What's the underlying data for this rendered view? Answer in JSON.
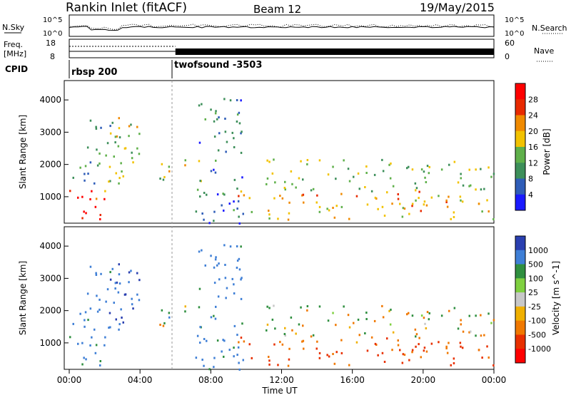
{
  "header": {
    "station": "Rankin Inlet (fitACF)",
    "beam": "Beam 12",
    "date": "19/May/2015"
  },
  "top_panel": {
    "left_label": "N.Sky",
    "right_label": "N.Search",
    "tick_top": "10^5",
    "tick_bottom": "10^0",
    "right_tick_top": "10^5",
    "right_tick_bottom": "10^0"
  },
  "freq_panel": {
    "left_label_line1": "Freq.",
    "left_label_line2": "[MHz]",
    "tick_top": "18",
    "tick_bottom": "8",
    "right_label": "Nave",
    "right_tick_top": "60",
    "right_tick_bottom": "0"
  },
  "cpid_panel": {
    "label": "CPID",
    "modes": [
      "rbsp 200",
      "twofsound -3503"
    ]
  },
  "x_axis": {
    "ticks": [
      "00:00",
      "04:00",
      "08:00",
      "12:00",
      "16:00",
      "20:00",
      "00:00"
    ],
    "label": "Time UT"
  },
  "power_panel": {
    "ylabel": "Slant Range [km]",
    "yticks": [
      "1000",
      "2000",
      "3000",
      "4000"
    ],
    "colorbar_label": "Power [dB]",
    "colorbar_ticks": [
      "4",
      "8",
      "12",
      "16",
      "20",
      "24",
      "28"
    ],
    "colors": [
      "#1a1aff",
      "#2f5db8",
      "#3d8f5a",
      "#5fb04a",
      "#f2c200",
      "#f08a00",
      "#e82a00",
      "#ff0000"
    ]
  },
  "velocity_panel": {
    "ylabel": "Slant Range [km]",
    "yticks": [
      "1000",
      "2000",
      "3000",
      "4000"
    ],
    "colorbar_label": "Velocity [m s^-1]",
    "colorbar_ticks": [
      "1000",
      "500",
      "100",
      "25",
      "-25",
      "-100",
      "-500",
      "-1000"
    ],
    "colors": [
      "#2a3fb0",
      "#3f7fd6",
      "#2f8f3f",
      "#7fd040",
      "#c8c8c8",
      "#f0b000",
      "#f07800",
      "#e83000",
      "#ff0000"
    ]
  },
  "chart_data": {
    "type": "heatmap",
    "title": "Rankin Inlet (fitACF) Beam 12 19/May/2015",
    "xlabel": "Time UT",
    "ylabel": "Slant Range [km]",
    "xlim_hours": [
      0,
      24
    ],
    "ylim_km": [
      180,
      4600
    ],
    "cpid_segments": [
      {
        "name": "rbsp 200",
        "start_h": 0,
        "end_h": 6.0
      },
      {
        "name": "twofsound -3503",
        "start_h": 6.0,
        "end_h": 24
      }
    ],
    "scatter_regions": [
      {
        "t0": 0.0,
        "t1": 2.1,
        "r0": 200,
        "r1": 1300,
        "power": 28,
        "velocity": 300
      },
      {
        "t0": 0.1,
        "t1": 1.5,
        "r0": 1400,
        "r1": 2200,
        "power": 8,
        "velocity": 500
      },
      {
        "t0": 1.0,
        "t1": 3.0,
        "r0": 1200,
        "r1": 3400,
        "power": 12,
        "velocity": 500
      },
      {
        "t0": 2.2,
        "t1": 4.0,
        "r0": 1300,
        "r1": 3500,
        "power": 16,
        "velocity": 800
      },
      {
        "t0": 5.0,
        "t1": 7.5,
        "r0": 1500,
        "r1": 2200,
        "power": 16,
        "velocity": 100
      },
      {
        "t0": 7.0,
        "t1": 9.8,
        "r0": 200,
        "r1": 4200,
        "power": 8,
        "velocity": 500
      },
      {
        "t0": 9.5,
        "t1": 24.0,
        "r0": 300,
        "r1": 1200,
        "power": 20,
        "velocity": -300
      },
      {
        "t0": 11.0,
        "t1": 24.0,
        "r0": 1200,
        "r1": 2200,
        "power": 14,
        "velocity": 0
      }
    ]
  }
}
